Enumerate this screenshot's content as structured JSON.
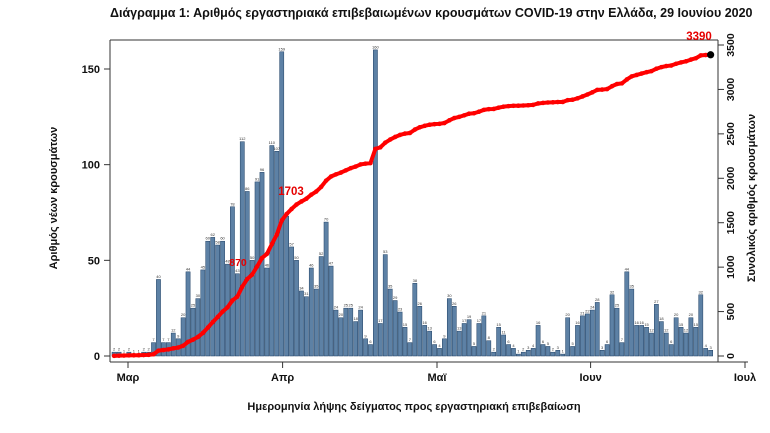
{
  "title": "Διάγραμμα 1: Αριθμός εργαστηριακά επιβεβαιωμένων κρουσμάτων COVID-19 στην Ελλάδα, 29 Ιουνίου 2020",
  "colors": {
    "bar_fill": "#5d81a5",
    "bar_stroke": "#1e3f63",
    "line": "#ff0000",
    "annotation": "#e60000",
    "axis": "#333333",
    "text": "#111111",
    "bar_label": "#333333"
  },
  "chart_data": {
    "type": "bar",
    "title": "Διάγραμμα 1: Αριθμός εργαστηριακά επιβεβαιωμένων κρουσμάτων COVID-19 στην Ελλάδα, 29 Ιουνίου 2020",
    "xlabel": "Ημερομηνία λήψης δείγματος προς εργαστηριακή επιβεβαίωση",
    "ylabel_left": "Αριθμός νέων κρουσμάτων",
    "ylabel_right": "Συνολικός αριθμός κρουσμάτων",
    "x_tick_labels": [
      "Μαρ",
      "Απρ",
      "Μαϊ",
      "Ιουν",
      "Ιουλ"
    ],
    "left_axis_ticks": [
      0,
      50,
      100,
      150
    ],
    "left_axis_range": [
      0,
      165
    ],
    "right_axis_ticks": [
      0,
      500,
      1000,
      1500,
      2000,
      2500,
      3000,
      3500
    ],
    "right_axis_range": [
      0,
      3500
    ],
    "grid": "off",
    "legend": "none",
    "series": [
      {
        "name": "daily_new_cases",
        "type": "bar",
        "values": [
          2,
          2,
          1,
          2,
          1,
          1,
          2,
          2,
          7,
          40,
          7,
          7,
          12,
          9,
          20,
          44,
          25,
          30,
          45,
          60,
          62,
          58,
          60,
          48,
          78,
          43,
          112,
          86,
          50,
          91,
          96,
          46,
          110,
          107,
          159,
          73,
          57,
          50,
          34,
          31,
          46,
          35,
          52,
          70,
          47,
          24,
          20,
          25,
          25,
          18,
          24,
          9,
          6,
          160,
          17,
          53,
          35,
          29,
          23,
          15,
          7,
          38,
          26,
          16,
          13,
          6,
          4,
          9,
          30,
          26,
          13,
          17,
          19,
          5,
          17,
          21,
          8,
          2,
          15,
          11,
          6,
          4,
          1,
          2,
          3,
          4,
          16,
          6,
          5,
          2,
          3,
          1,
          20,
          5,
          16,
          21,
          22,
          24,
          28,
          3,
          6,
          32,
          25,
          7,
          44,
          35,
          16,
          16,
          15,
          12,
          27,
          18,
          12,
          6,
          20,
          15,
          12,
          20,
          15,
          32,
          4,
          3
        ]
      },
      {
        "name": "cumulative_total",
        "type": "line",
        "derivation": "running_sum_of_daily_new_cases",
        "final_value": 3390
      }
    ],
    "annotations": [
      {
        "text": "870",
        "value": 870,
        "x": 238,
        "y": 266
      },
      {
        "text": "1703",
        "value": 1703,
        "x": 291,
        "y": 195
      },
      {
        "text": "3390",
        "value": 3390,
        "x": 699,
        "y": 40
      }
    ]
  }
}
